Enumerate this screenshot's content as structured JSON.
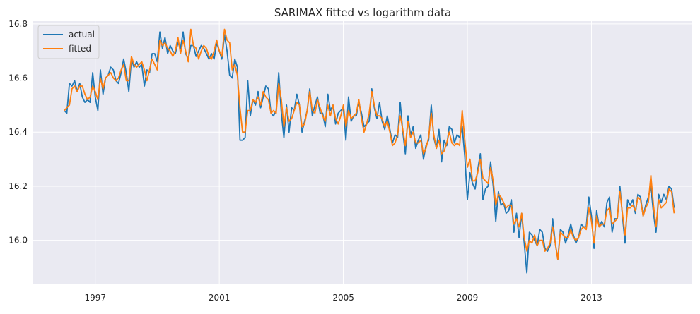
{
  "chart_data": {
    "type": "line",
    "title": "SARIMAX fitted vs logarithm data",
    "xlabel": "",
    "ylabel": "",
    "x_ticks": [
      "1997",
      "2001",
      "2005",
      "2009",
      "2013"
    ],
    "y_ticks": [
      "16.0",
      "16.2",
      "16.4",
      "16.6",
      "16.8"
    ],
    "xlim": [
      "1995-01",
      "2016-04"
    ],
    "ylim": [
      15.84,
      16.81
    ],
    "grid": true,
    "legend_position": "top-left",
    "background_color": "#eaeaf2",
    "grid_color": "#ffffff",
    "start_month": "1996-01",
    "frequency": "monthly",
    "series": [
      {
        "name": "actual",
        "color": "#1f77b4",
        "values": [
          16.48,
          16.47,
          16.58,
          16.57,
          16.59,
          16.55,
          16.58,
          16.53,
          16.51,
          16.52,
          16.51,
          16.62,
          16.53,
          16.48,
          16.63,
          16.54,
          16.6,
          16.61,
          16.64,
          16.63,
          16.59,
          16.58,
          16.62,
          16.67,
          16.62,
          16.55,
          16.67,
          16.64,
          16.66,
          16.64,
          16.65,
          16.57,
          16.63,
          16.62,
          16.69,
          16.69,
          16.66,
          16.77,
          16.71,
          16.75,
          16.69,
          16.72,
          16.7,
          16.69,
          16.73,
          16.71,
          16.77,
          16.69,
          16.67,
          16.72,
          16.72,
          16.68,
          16.7,
          16.72,
          16.71,
          16.69,
          16.67,
          16.69,
          16.67,
          16.73,
          16.7,
          16.67,
          16.76,
          16.7,
          16.61,
          16.6,
          16.67,
          16.64,
          16.37,
          16.37,
          16.38,
          16.59,
          16.46,
          16.52,
          16.5,
          16.55,
          16.49,
          16.53,
          16.57,
          16.56,
          16.47,
          16.46,
          16.48,
          16.62,
          16.47,
          16.38,
          16.5,
          16.4,
          16.49,
          16.48,
          16.54,
          16.5,
          16.4,
          16.44,
          16.48,
          16.56,
          16.46,
          16.5,
          16.53,
          16.47,
          16.47,
          16.42,
          16.54,
          16.48,
          16.5,
          16.43,
          16.47,
          16.48,
          16.49,
          16.37,
          16.53,
          16.44,
          16.46,
          16.46,
          16.51,
          16.47,
          16.42,
          16.43,
          16.44,
          16.56,
          16.49,
          16.45,
          16.51,
          16.44,
          16.41,
          16.46,
          16.41,
          16.36,
          16.39,
          16.38,
          16.51,
          16.4,
          16.32,
          16.46,
          16.39,
          16.42,
          16.34,
          16.37,
          16.39,
          16.3,
          16.35,
          16.37,
          16.5,
          16.38,
          16.34,
          16.41,
          16.29,
          16.37,
          16.35,
          16.42,
          16.41,
          16.36,
          16.39,
          16.38,
          16.42,
          16.31,
          16.15,
          16.25,
          16.21,
          16.19,
          16.26,
          16.32,
          16.15,
          16.19,
          16.2,
          16.29,
          16.2,
          16.07,
          16.18,
          16.13,
          16.14,
          16.1,
          16.11,
          16.15,
          16.03,
          16.1,
          16.01,
          16.1,
          15.99,
          15.88,
          16.03,
          16.02,
          16.0,
          15.98,
          16.04,
          16.03,
          15.97,
          15.96,
          15.98,
          16.08,
          15.99,
          15.93,
          16.04,
          16.03,
          15.99,
          16.02,
          16.06,
          16.02,
          15.99,
          16.01,
          16.06,
          16.05,
          16.05,
          16.16,
          16.09,
          15.97,
          16.11,
          16.05,
          16.07,
          16.05,
          16.14,
          16.16,
          16.03,
          16.08,
          16.08,
          16.2,
          16.09,
          15.99,
          16.15,
          16.13,
          16.15,
          16.1,
          16.17,
          16.16,
          16.09,
          16.13,
          16.16,
          16.2,
          16.1,
          16.03,
          16.17,
          16.14,
          16.17,
          16.15,
          16.2,
          16.19,
          16.12
        ]
      },
      {
        "name": "fitted",
        "color": "#ff7f0e",
        "values": [
          16.48,
          16.49,
          16.5,
          16.56,
          16.57,
          16.55,
          16.57,
          16.57,
          16.54,
          16.52,
          16.53,
          16.57,
          16.55,
          16.52,
          16.6,
          16.56,
          16.6,
          16.61,
          16.62,
          16.6,
          16.59,
          16.6,
          16.63,
          16.65,
          16.59,
          16.59,
          16.68,
          16.65,
          16.64,
          16.65,
          16.66,
          16.63,
          16.59,
          16.63,
          16.67,
          16.65,
          16.63,
          16.74,
          16.72,
          16.73,
          16.71,
          16.7,
          16.68,
          16.7,
          16.75,
          16.69,
          16.74,
          16.7,
          16.66,
          16.78,
          16.72,
          16.71,
          16.67,
          16.7,
          16.72,
          16.71,
          16.68,
          16.67,
          16.7,
          16.74,
          16.7,
          16.68,
          16.78,
          16.74,
          16.73,
          16.63,
          16.65,
          16.61,
          16.49,
          16.4,
          16.4,
          16.48,
          16.48,
          16.52,
          16.51,
          16.53,
          16.5,
          16.55,
          16.53,
          16.52,
          16.47,
          16.48,
          16.47,
          16.58,
          16.52,
          16.42,
          16.49,
          16.44,
          16.45,
          16.48,
          16.51,
          16.5,
          16.42,
          16.43,
          16.48,
          16.55,
          16.48,
          16.47,
          16.52,
          16.49,
          16.46,
          16.44,
          16.5,
          16.46,
          16.5,
          16.45,
          16.43,
          16.46,
          16.5,
          16.42,
          16.48,
          16.45,
          16.46,
          16.47,
          16.52,
          16.45,
          16.4,
          16.43,
          16.47,
          16.55,
          16.5,
          16.46,
          16.46,
          16.45,
          16.42,
          16.44,
          16.4,
          16.35,
          16.36,
          16.39,
          16.46,
          16.41,
          16.35,
          16.44,
          16.38,
          16.4,
          16.36,
          16.36,
          16.37,
          16.32,
          16.34,
          16.38,
          16.47,
          16.39,
          16.34,
          16.37,
          16.32,
          16.33,
          16.36,
          16.4,
          16.36,
          16.35,
          16.36,
          16.35,
          16.48,
          16.37,
          16.27,
          16.3,
          16.22,
          16.22,
          16.25,
          16.3,
          16.23,
          16.22,
          16.21,
          16.27,
          16.22,
          16.13,
          16.17,
          16.16,
          16.14,
          16.12,
          16.13,
          16.13,
          16.06,
          16.08,
          16.05,
          16.1,
          16.01,
          15.96,
          16.0,
          15.99,
          16.02,
          15.98,
          16.0,
          16.0,
          15.96,
          15.97,
          15.99,
          16.05,
          15.99,
          15.93,
          16.03,
          16.02,
          16.01,
          16.01,
          16.04,
          16.01,
          16.0,
          16.01,
          16.04,
          16.05,
          16.04,
          16.12,
          16.07,
          15.99,
          16.09,
          16.05,
          16.06,
          16.06,
          16.11,
          16.12,
          16.06,
          16.07,
          16.08,
          16.18,
          16.1,
          16.02,
          16.12,
          16.12,
          16.13,
          16.11,
          16.16,
          16.15,
          16.09,
          16.12,
          16.14,
          16.24,
          16.13,
          16.05,
          16.15,
          16.12,
          16.13,
          16.14,
          16.19,
          16.18,
          16.1
        ]
      }
    ]
  }
}
